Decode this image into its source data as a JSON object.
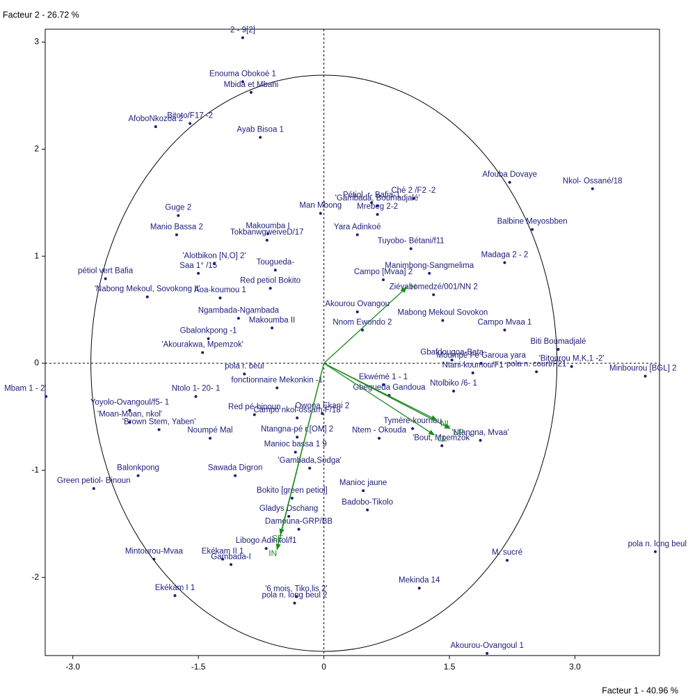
{
  "chart_data": {
    "type": "scatter",
    "x_label": "Facteur 1 - 40.96 %",
    "y_label": "Facteur 2 - 26.72 %",
    "xlim": [
      -3.33,
      4.01
    ],
    "ylim": [
      -2.73,
      3.12
    ],
    "xticks": [
      {
        "value": -3,
        "label": "-3.0"
      },
      {
        "value": -1.5,
        "label": "-1.5"
      },
      0,
      {
        "value": 1.5,
        "label": "1.5"
      },
      {
        "value": 3,
        "label": "3.0"
      }
    ],
    "yticks": [
      -2,
      -1,
      0,
      1,
      2,
      3
    ],
    "points": {
      "color": "#1c1c7a",
      "labels": [
        "2 - 9[2]",
        "Enouma Obokoé 1",
        "Mbida et Mbani",
        "AfoboNkozoa 2",
        "Bitoto/F17 -2",
        "Ayab Bisoa 1",
        "Guge 2",
        "Manio Bassa  2",
        "Man Mbong",
        "Makoumba I",
        "TokbanwgweiveD/17",
        "'Gambada, Boumadjalé'",
        "Pétiol. r- Bafia-1",
        "Ché 2 /F2 -2",
        "Mrebeg 2-2",
        "Yara Adinkoé",
        "Afouba Dovaye",
        "Nkol- Ossané/18",
        "Balbine Meyosbben",
        "Tuyobo- Bétani/f11",
        "Manimbong-Sangmelima",
        "Madaga 2 - 2",
        "'Alotbikon [N,O] 2'",
        "Saa 1° /15",
        "'Nabong Mekoul, Sovokong II'",
        "pétiol vert Bafia",
        "Tougueda-",
        "Red petiol Bokito",
        "Aoa-koumou 1",
        "Campo [Mvaa] 2",
        "Ziéyabomedzé/001/NN 2",
        "Akourou Ovangou",
        "Nnom Ewondo 2",
        "Mabong Mekoul Sovokon",
        "Campo Mvaa 1",
        "Ngambada-Ngambada",
        "Makoumba II",
        "Gbalonkpong -1",
        "'Akourakwa, Mpemzok'",
        "Gbafdougoa-Bata",
        "Moumpé Fe Garoua yara",
        "Biti Boumadjalé",
        "'Bitourou M,K,1 -2'",
        "Minbourou [BGL] 2",
        "pola n. court/F21",
        "Ntani-koumou/F1",
        "pola r. beul",
        "Mbam 1 - 2'",
        "Yoyolo-Ovangoul/f5- 1",
        "Ntolo 1- 20- 1",
        "fonctionnaire Mekonkin -1",
        "Ekwémé 1 - 1",
        "Gbegueda Gandoua",
        "Ntolbiko /6- 1",
        "'Moan-Moan, nkol'",
        "Owona Ekani 2",
        "Red pé-binoun",
        "Campo nkol-ossam F/18",
        "Tymère-kournou",
        "'Ntangna, Mvaa'",
        "Noumpé Mal",
        "Ntangna-pé r.[OM] 2",
        "Ntem - Okouda",
        "'Bout, Mpemzok'",
        "'Brown Stem, Yaben'",
        "Manioc bassa 1 9",
        "Balonkpong",
        "Green petiol- Binoun",
        "Sawada Digron",
        "'Gambada,Sodga'",
        "Manioc jaune",
        "Bokito [green petiol]",
        "Gladys Dschang",
        "Badobo-Tikolo",
        "Damouna-GRP/BB",
        "Libogo Adinkol/f1",
        "Gambada-I",
        "Ekékam II 1",
        "Mintourou-Mvaa",
        "Ekékam I 1",
        "M. sucré",
        "pola n. long beul",
        "Mekinda 14",
        "'6 mois, Tiko,lis 2'",
        "pola n. long beul 2",
        "Akourou-Ovangoul 1"
      ],
      "x": [
        -0.97,
        -0.97,
        -0.87,
        -2.01,
        -1.6,
        -0.76,
        -1.74,
        -1.76,
        -0.04,
        -0.67,
        -0.68,
        0.64,
        0.57,
        1.07,
        0.64,
        0.4,
        2.22,
        3.21,
        2.49,
        1.04,
        1.26,
        2.16,
        -1.31,
        -1.5,
        -2.11,
        -2.61,
        -0.58,
        -0.64,
        -1.24,
        0.71,
        1.31,
        0.4,
        0.46,
        1.42,
        2.16,
        -1.02,
        -0.62,
        -1.38,
        -1.45,
        1.53,
        1.88,
        2.8,
        2.96,
        3.84,
        2.54,
        1.78,
        -0.95,
        -3.32,
        -2.32,
        -1.53,
        -0.56,
        0.71,
        0.78,
        1.55,
        -2.32,
        -0.02,
        -0.83,
        -0.32,
        1.06,
        1.87,
        -1.36,
        -0.32,
        0.66,
        1.41,
        -1.97,
        -0.34,
        -2.22,
        -2.75,
        -1.06,
        -0.17,
        0.47,
        -0.38,
        -0.42,
        0.52,
        -0.3,
        -0.69,
        -1.11,
        -1.21,
        -2.03,
        -1.78,
        2.19,
        3.96,
        1.14,
        -0.33,
        -0.35,
        1.95
      ],
      "y": [
        3.04,
        2.63,
        2.53,
        2.21,
        2.24,
        2.11,
        1.38,
        1.2,
        1.4,
        1.21,
        1.15,
        1.47,
        1.5,
        1.54,
        1.39,
        1.2,
        1.69,
        1.63,
        1.25,
        1.07,
        0.84,
        0.94,
        0.93,
        0.84,
        0.62,
        0.79,
        0.87,
        0.7,
        0.61,
        0.78,
        0.64,
        0.48,
        0.31,
        0.4,
        0.31,
        0.42,
        0.33,
        0.23,
        0.1,
        0.03,
        0.0,
        0.13,
        -0.03,
        -0.12,
        -0.08,
        -0.09,
        -0.1,
        -0.31,
        -0.44,
        -0.31,
        -0.23,
        -0.2,
        -0.3,
        -0.26,
        -0.55,
        -0.47,
        -0.48,
        -0.51,
        -0.61,
        -0.72,
        -0.7,
        -0.69,
        -0.7,
        -0.77,
        -0.62,
        -0.83,
        -1.05,
        -1.17,
        -1.05,
        -0.98,
        -1.19,
        -1.26,
        -1.43,
        -1.37,
        -1.55,
        -1.73,
        -1.88,
        -1.83,
        -1.83,
        -2.17,
        -1.84,
        -1.76,
        -2.1,
        -2.18,
        -2.24,
        -2.71
      ]
    },
    "vectors": {
      "color": "#1d8a1d",
      "labels": [
        "H",
        "NL",
        "LP",
        "LL",
        "SE",
        "IN"
      ],
      "x": [
        0.99,
        1.35,
        1.51,
        1.32,
        -0.52,
        -0.56
      ],
      "y": [
        0.71,
        -0.53,
        -0.61,
        -0.67,
        -1.6,
        -1.74
      ]
    }
  }
}
